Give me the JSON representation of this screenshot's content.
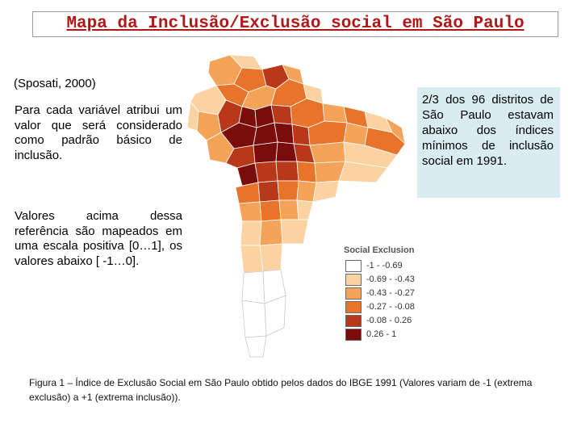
{
  "title": "Mapa da Inclusão/Exclusão social em São Paulo",
  "citation": "(Sposati, 2000)",
  "paragraph1": "Para cada variável atribui um valor que será considerado como padrão básico de inclusão.",
  "paragraph2": "Valores acima dessa referência são mapeados em uma escala positiva [0…1], os valores abaixo [ -1…0].",
  "note": "2/3 dos 96 distritos de São Paulo estavam abaixo dos índices mínimos de inclusão social em 1991.",
  "legend": {
    "title": "Social Exclusion",
    "items": [
      {
        "label": "-1 - -0.69",
        "color": "#ffffff"
      },
      {
        "label": "-0.69 - -0.43",
        "color": "#fbd3a3"
      },
      {
        "label": "-0.43 - -0.27",
        "color": "#f6a35a"
      },
      {
        "label": "-0.27 - -0.08",
        "color": "#e8732a"
      },
      {
        "label": "-0.08 - 0.26",
        "color": "#b8381a"
      },
      {
        "label": "0.26 - 1",
        "color": "#7a0c0c"
      }
    ]
  },
  "caption": "Figura 1 – Índice de Exclusão Social em São Paulo obtido pelos dados do IBGE 1991 (Valores variam de -1 (extrema exclusão) a +1 (extrema inclusão))."
}
